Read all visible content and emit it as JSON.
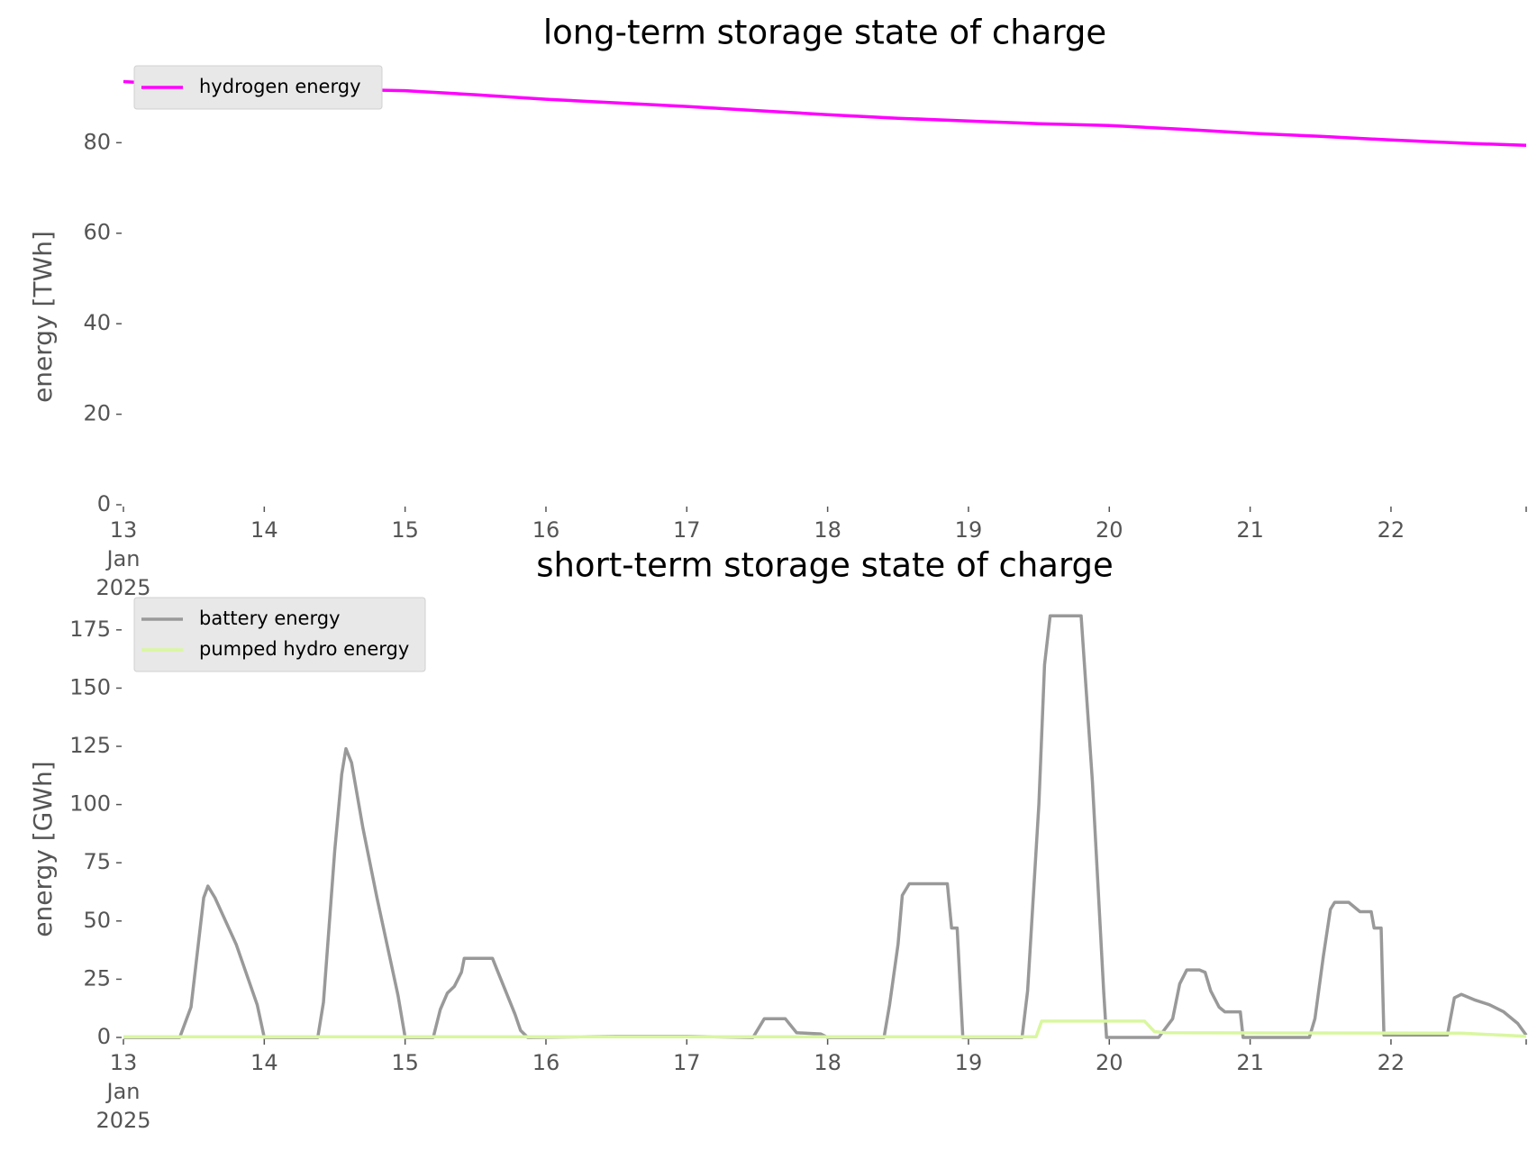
{
  "chart_data": [
    {
      "type": "line",
      "title": "long-term storage state of charge",
      "ylabel": "energy [TWh]",
      "xlim": [
        13,
        22.96
      ],
      "ylim": [
        0,
        95
      ],
      "xticks": [
        {
          "value": 13,
          "label": "13 Jan 2025"
        },
        14,
        15,
        16,
        17,
        18,
        19,
        20,
        21,
        22
      ],
      "yticks": [
        0,
        20,
        40,
        60,
        80
      ],
      "legend": "upper left",
      "series": [
        {
          "name": "hydrogen energy",
          "color": "#ff00ff",
          "x": [
            13,
            13.5,
            14,
            14.5,
            15,
            15.5,
            16,
            16.5,
            17,
            17.5,
            18,
            18.5,
            19,
            19.5,
            20,
            20.5,
            21,
            21.5,
            22,
            22.5,
            22.96
          ],
          "values": [
            93.5,
            92.6,
            92.2,
            91.8,
            91.5,
            90.6,
            89.6,
            88.8,
            88.0,
            87.1,
            86.2,
            85.4,
            84.8,
            84.2,
            83.8,
            83.0,
            82.1,
            81.4,
            80.6,
            79.9,
            79.4
          ]
        }
      ]
    },
    {
      "type": "line",
      "title": "short-term storage state of charge",
      "ylabel": "energy [GWh]",
      "xlim": [
        13,
        22.96
      ],
      "ylim": [
        0,
        185
      ],
      "xticks": [
        {
          "value": 13,
          "label": "13 Jan 2025"
        },
        14,
        15,
        16,
        17,
        18,
        19,
        20,
        21,
        22
      ],
      "yticks": [
        0,
        25,
        50,
        75,
        100,
        125,
        150,
        175
      ],
      "legend": "upper left",
      "series": [
        {
          "name": "battery energy",
          "color": "#999999",
          "x": [
            13,
            13.4,
            13.48,
            13.57,
            13.6,
            13.65,
            13.8,
            13.95,
            14.0,
            14.38,
            14.42,
            14.5,
            14.55,
            14.58,
            14.62,
            14.7,
            14.8,
            14.95,
            15.0,
            15.2,
            15.25,
            15.3,
            15.35,
            15.4,
            15.42,
            15.62,
            15.66,
            15.78,
            15.82,
            15.87,
            16.5,
            17.0,
            17.47,
            17.55,
            17.7,
            17.78,
            17.95,
            18.0,
            18.4,
            18.44,
            18.5,
            18.53,
            18.58,
            18.85,
            18.88,
            18.92,
            18.96,
            19.38,
            19.42,
            19.5,
            19.54,
            19.58,
            19.8,
            19.88,
            19.96,
            19.98,
            20.35,
            20.45,
            20.5,
            20.55,
            20.64,
            20.68,
            20.72,
            20.78,
            20.82,
            20.93,
            20.95,
            21.42,
            21.46,
            21.52,
            21.57,
            21.6,
            21.7,
            21.78,
            21.86,
            21.88,
            21.93,
            21.95,
            22.4,
            22.45,
            22.5,
            22.6,
            22.7,
            22.8,
            22.9,
            22.96
          ],
          "values": [
            0,
            0,
            13,
            60,
            65,
            60,
            40,
            14,
            0,
            0,
            15,
            80,
            113,
            124,
            118,
            90,
            60,
            18,
            0,
            0,
            12,
            19,
            22,
            28,
            34,
            34,
            28,
            10,
            3,
            0,
            0.5,
            0.5,
            0,
            8,
            8,
            2,
            1.5,
            0,
            0,
            14,
            40,
            61,
            66,
            66,
            47,
            47,
            0,
            0,
            20,
            100,
            160,
            181,
            181,
            110,
            20,
            0,
            0,
            8,
            23,
            29,
            29,
            28,
            20,
            13,
            11,
            11,
            0,
            0,
            8,
            35,
            55,
            58,
            58,
            54,
            54,
            47,
            47,
            1,
            1,
            17,
            18.5,
            16,
            14,
            11,
            6,
            1
          ]
        },
        {
          "name": "pumped hydro energy",
          "color": "#d9f7a0",
          "x": [
            13,
            19.48,
            19.52,
            20.25,
            20.32,
            20.4,
            22.5,
            22.96
          ],
          "values": [
            0.3,
            0.3,
            7,
            7,
            2.5,
            2,
            1.8,
            0.5
          ]
        }
      ]
    }
  ]
}
